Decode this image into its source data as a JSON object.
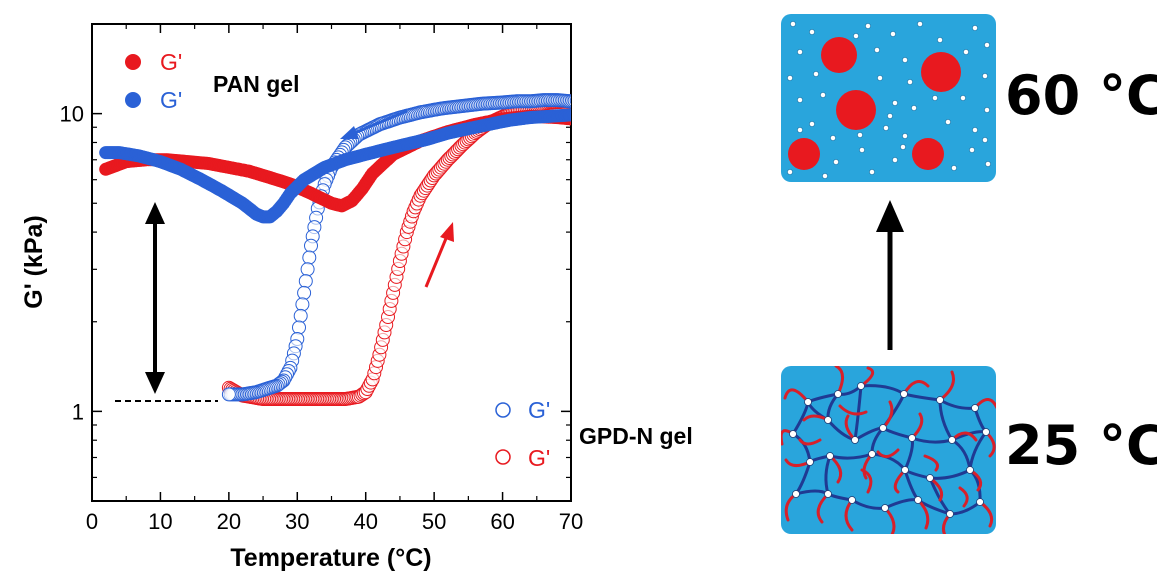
{
  "chart_data": {
    "type": "scatter",
    "title": "",
    "xlabel": "Temperature (°C)",
    "ylabel": "G' (kPa)",
    "x_scale": "linear",
    "y_scale": "log",
    "xlim": [
      0,
      70
    ],
    "ylim": [
      0.5,
      20
    ],
    "x_ticks": [
      0,
      10,
      20,
      30,
      40,
      50,
      60,
      70
    ],
    "x_tick_labels": [
      "0",
      "10",
      "20",
      "30",
      "40",
      "50",
      "60",
      "70"
    ],
    "y_ticks": [
      1,
      10
    ],
    "y_tick_labels": [
      "1",
      "10"
    ],
    "grid": false,
    "legend_groups": [
      {
        "title": "PAN gel",
        "placement": "top-left",
        "entries": [
          {
            "label": "G'",
            "color": "#e8191f",
            "marker": "filled"
          },
          {
            "label": "G'",
            "color": "#2a61d6",
            "marker": "filled"
          }
        ]
      },
      {
        "title": "GPD-N gel",
        "placement": "bottom-right",
        "entries": [
          {
            "label": "G'",
            "color": "#2a61d6",
            "marker": "open"
          },
          {
            "label": "G'",
            "color": "#e8191f",
            "marker": "open"
          }
        ]
      }
    ],
    "series": [
      {
        "gel": "PAN gel",
        "label": "G'",
        "direction": "heating",
        "color": "#e8191f",
        "marker": "filled",
        "x": [
          2,
          5,
          8,
          11,
          14,
          17,
          20,
          23,
          26,
          29,
          32,
          35,
          36.5,
          38,
          39.5,
          41,
          44,
          48,
          52,
          56,
          60,
          64,
          68,
          70
        ],
        "y": [
          6.5,
          6.9,
          7.0,
          7.0,
          6.9,
          6.8,
          6.6,
          6.4,
          6.1,
          5.8,
          5.4,
          5.0,
          4.9,
          5.1,
          5.6,
          6.3,
          7.3,
          8.1,
          8.7,
          9.2,
          9.6,
          9.8,
          9.7,
          9.6
        ]
      },
      {
        "gel": "PAN gel",
        "label": "G'",
        "direction": "cooling",
        "color": "#2a61d6",
        "marker": "filled",
        "x": [
          70,
          67,
          64,
          61,
          58,
          55,
          52,
          49,
          46,
          43,
          40,
          37,
          34,
          31,
          29,
          28,
          27,
          26,
          25,
          24,
          22,
          19,
          16,
          13,
          10,
          7,
          4,
          2
        ],
        "y": [
          9.9,
          9.8,
          9.7,
          9.5,
          9.2,
          8.9,
          8.6,
          8.2,
          7.9,
          7.6,
          7.3,
          7.0,
          6.6,
          6.0,
          5.4,
          5.0,
          4.7,
          4.5,
          4.5,
          4.6,
          5.0,
          5.5,
          6.0,
          6.5,
          6.9,
          7.2,
          7.4,
          7.4
        ]
      },
      {
        "gel": "GPD-N gel",
        "label": "G'",
        "direction": "heating",
        "color": "#e8191f",
        "marker": "open",
        "x": [
          20,
          22,
          25,
          28,
          31,
          34,
          37,
          39,
          40,
          41,
          42,
          43,
          44,
          45,
          46,
          47,
          48,
          50,
          52,
          54,
          56,
          58,
          61,
          64,
          67,
          70
        ],
        "y": [
          1.2,
          1.13,
          1.1,
          1.1,
          1.1,
          1.1,
          1.1,
          1.12,
          1.16,
          1.28,
          1.55,
          1.95,
          2.5,
          3.2,
          4.0,
          4.7,
          5.3,
          6.2,
          7.0,
          7.8,
          8.6,
          9.3,
          10.0,
          10.5,
          10.9,
          11.0
        ]
      },
      {
        "gel": "GPD-N gel",
        "label": "G'",
        "direction": "cooling",
        "color": "#2a61d6",
        "marker": "open",
        "x": [
          70,
          68,
          66,
          64,
          62,
          60,
          57,
          54,
          51,
          48,
          45,
          42,
          39,
          37,
          35,
          34,
          33,
          32,
          31,
          30,
          29,
          28,
          27,
          26,
          25,
          24,
          23,
          22,
          21,
          20
        ],
        "y": [
          11.0,
          11.1,
          11.1,
          11.0,
          11.0,
          10.9,
          10.8,
          10.6,
          10.4,
          10.1,
          9.7,
          9.2,
          8.5,
          7.7,
          6.6,
          5.8,
          4.8,
          3.6,
          2.5,
          1.75,
          1.4,
          1.27,
          1.22,
          1.2,
          1.18,
          1.16,
          1.15,
          1.14,
          1.14,
          1.14
        ]
      }
    ],
    "annotations": [
      {
        "type": "arrow",
        "color": "#2a61d6",
        "direction": "toward lower temperature",
        "near": "cooling curve"
      },
      {
        "type": "arrow",
        "color": "#e8191f",
        "direction": "toward higher temperature",
        "near": "heating curve"
      },
      {
        "type": "double-arrow",
        "color": "#000000",
        "meaning": "modulus difference"
      },
      {
        "type": "dashed-line",
        "color": "#000000",
        "level": 1.1
      }
    ]
  },
  "schematics": [
    {
      "label": "60 °C",
      "state": "dispersed red domains and white dots in blue matrix",
      "background": "#29a5dc"
    },
    {
      "label": "25 °C",
      "state": "network of blue and red chains with white junctions",
      "background": "#29a5dc"
    }
  ],
  "transition_arrow": {
    "color": "#000000",
    "direction": "up"
  }
}
